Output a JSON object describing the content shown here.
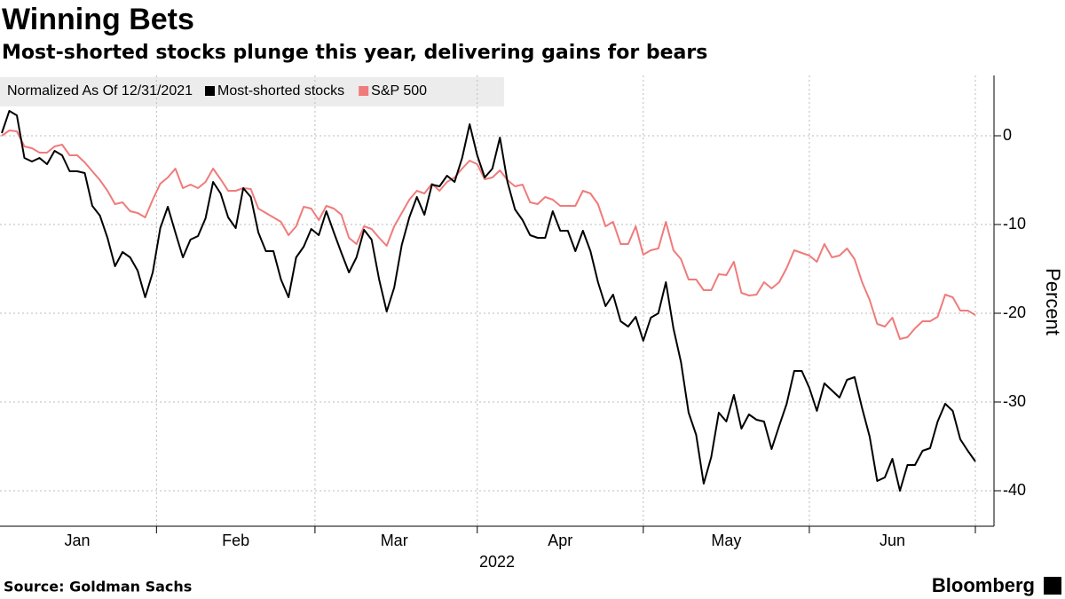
{
  "chart_data": {
    "type": "line",
    "title": "Winning Bets",
    "subtitle": "Most-shorted stocks plunge this year, delivering gains for bears",
    "legend_title": "Normalized As Of 12/31/2021",
    "ylabel": "Percent",
    "xlabel": "2022",
    "source": "Source: Goldman Sachs",
    "brand": "Bloomberg",
    "categories": [
      null,
      null,
      null,
      null,
      null,
      null,
      null,
      null,
      null,
      null,
      "Jan",
      null,
      null,
      null,
      null,
      null,
      null,
      null,
      null,
      null,
      null,
      null,
      null,
      null,
      null,
      null,
      null,
      null,
      null,
      null,
      null,
      "Feb",
      null,
      null,
      null,
      null,
      null,
      null,
      null,
      null,
      null,
      null,
      null,
      null,
      null,
      null,
      null,
      null,
      null,
      null,
      null,
      null,
      "Mar",
      null,
      null,
      null,
      null,
      null,
      null,
      null,
      null,
      null,
      null,
      null,
      null,
      null,
      null,
      null,
      null,
      null,
      null,
      null,
      null,
      null,
      "Apr",
      null,
      null,
      null,
      null,
      null,
      null,
      null,
      null,
      null,
      null,
      null,
      null,
      null,
      null,
      null,
      null,
      null,
      null,
      null,
      null,
      null,
      "May",
      null,
      null,
      null,
      null,
      null,
      null,
      null,
      null,
      null,
      null,
      null,
      null,
      null,
      null,
      null,
      null,
      null,
      null,
      null,
      null,
      null,
      "Jun",
      null,
      null,
      null,
      null,
      null,
      null,
      null,
      null,
      null,
      null,
      null
    ],
    "series": [
      {
        "name": "Most-shorted stocks",
        "color": "#000000",
        "values": [
          0.3,
          2.8,
          2.3,
          -2.5,
          -2.9,
          -2.5,
          -3.2,
          -1.7,
          -2.2,
          -4,
          -4,
          -4.2,
          -7.9,
          -9,
          -11.5,
          -14.7,
          -13.1,
          -13.7,
          -15.2,
          -18.2,
          -15.4,
          -10.4,
          -8,
          -10.9,
          -13.7,
          -11.7,
          -11.3,
          -9.3,
          -5.2,
          -6.5,
          -9.2,
          -10.4,
          -5.9,
          -6.9,
          -10.9,
          -13,
          -13,
          -16.2,
          -18.2,
          -13.7,
          -12.5,
          -10.5,
          -11.2,
          -8.5,
          -10.9,
          -13.2,
          -15.4,
          -13.7,
          -10.6,
          -11.7,
          -16.2,
          -19.8,
          -17.1,
          -12.3,
          -9.2,
          -6.9,
          -8.9,
          -5.5,
          -5.7,
          -4.5,
          -5.2,
          -2.5,
          1.3,
          -2.2,
          -4.7,
          -3.7,
          -0.2,
          -5.2,
          -8.3,
          -9.5,
          -11.2,
          -11.5,
          -11.5,
          -8.5,
          -10.7,
          -10.7,
          -13,
          -10.7,
          -13,
          -16.5,
          -19.2,
          -17.9,
          -20.9,
          -21.5,
          -20.4,
          -23.1,
          -20.5,
          -20,
          -16.5,
          -21.7,
          -25.5,
          -31.2,
          -33.7,
          -39.2,
          -36.2,
          -31.2,
          -32.2,
          -29.2,
          -33,
          -31.4,
          -32,
          -32.2,
          -35.3,
          -32.7,
          -30.2,
          -26.5,
          -26.5,
          -28.4,
          -31,
          -27.9,
          -28.7,
          -29.5,
          -27.5,
          -27.2,
          -30.7,
          -33.9,
          -38.9,
          -38.5,
          -36.4,
          -40,
          -37.1,
          -37.1,
          -35.5,
          -35.2,
          -32.2,
          -30.2,
          -31,
          -34.2,
          -35.5,
          -36.7
        ]
      },
      {
        "name": "S&P 500",
        "color": "#f07b7b",
        "values": [
          0,
          0.6,
          0.5,
          -1.2,
          -1.4,
          -1.9,
          -1.9,
          -1.2,
          -1,
          -2.2,
          -2.2,
          -3,
          -4,
          -5,
          -6.2,
          -7.7,
          -7.5,
          -8.5,
          -8.7,
          -9.2,
          -7.2,
          -5.4,
          -4.7,
          -3.7,
          -5.9,
          -5.5,
          -5.9,
          -5.2,
          -3.7,
          -4.9,
          -6.2,
          -6.2,
          -5.9,
          -6,
          -8.2,
          -8.7,
          -9.2,
          -9.7,
          -11.2,
          -10.2,
          -8,
          -8.2,
          -9.5,
          -7.9,
          -8.2,
          -8.9,
          -11.5,
          -12.2,
          -10.2,
          -10.5,
          -11.5,
          -12.4,
          -10.2,
          -8.7,
          -7.2,
          -6.2,
          -6.5,
          -5.4,
          -6.2,
          -5.2,
          -4.7,
          -3.7,
          -2.8,
          -3.2,
          -4.9,
          -4.7,
          -3.9,
          -5,
          -5.7,
          -5.5,
          -7.5,
          -7.7,
          -6.9,
          -7.2,
          -7.9,
          -7.9,
          -7.9,
          -6.2,
          -6.5,
          -7.7,
          -10.2,
          -9.7,
          -12.2,
          -12.2,
          -10.2,
          -13.4,
          -12.9,
          -12.7,
          -9.7,
          -12.9,
          -13.9,
          -16.2,
          -16.2,
          -17.4,
          -17.4,
          -15.6,
          -15.7,
          -14.2,
          -17.7,
          -18,
          -17.9,
          -16.5,
          -17.2,
          -16.5,
          -14.9,
          -12.9,
          -13.2,
          -13.5,
          -14.2,
          -12.2,
          -13.7,
          -13.5,
          -12.7,
          -13.9,
          -16.5,
          -18.5,
          -21.2,
          -21.5,
          -20.5,
          -22.9,
          -22.7,
          -21.7,
          -20.9,
          -20.9,
          -20.4,
          -17.9,
          -18.2,
          -19.7,
          -19.7,
          -20.2
        ]
      }
    ],
    "ylim": [
      -44,
      6.8
    ],
    "yticks": [
      -40,
      -30,
      -20,
      -10,
      0
    ],
    "grid": true
  }
}
